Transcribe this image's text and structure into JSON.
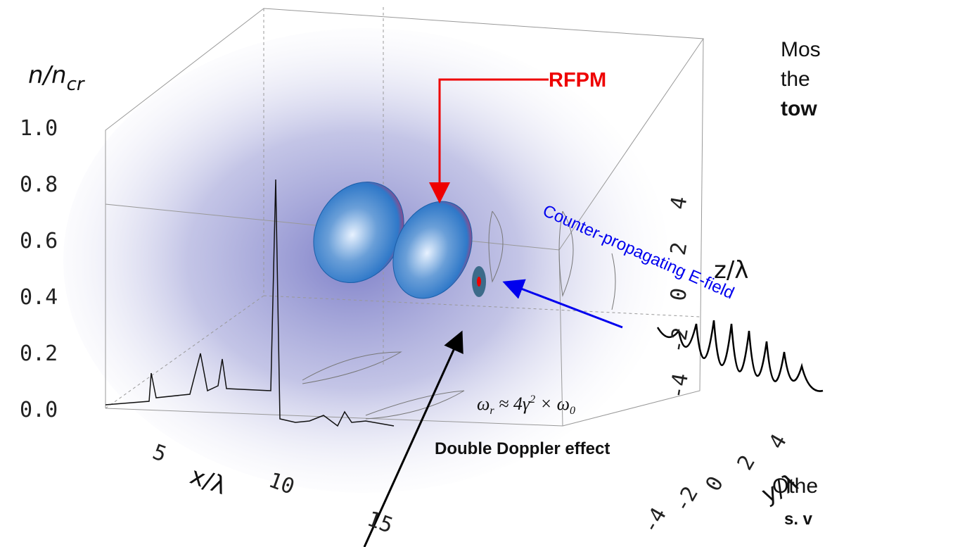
{
  "figure": {
    "n_axis": {
      "label": "n/n",
      "label_sub": "cr",
      "ticks": [
        "1.0",
        "0.8",
        "0.6",
        "0.4",
        "0.2",
        "0.0"
      ]
    },
    "x_axis": {
      "label": "x/λ",
      "ticks": [
        "5",
        "10",
        "15"
      ]
    },
    "y_axis": {
      "label": "y/λ",
      "ticks": [
        "-4",
        "-2",
        "0",
        "2",
        "4"
      ]
    },
    "z_axis": {
      "label": "z/λ",
      "ticks": [
        "4",
        "2",
        "0",
        "-2",
        "-4"
      ]
    },
    "labels": {
      "rfpm": "RFPM",
      "e_field": "Counter-propagating E-field",
      "doppler": "Double Doppler effect"
    },
    "formula": {
      "w": "ω",
      "w_sub": "r",
      "mid": " ≈ 4γ",
      "sup": "2",
      "times": " × ω",
      "sub": "0"
    }
  },
  "side_text": {
    "line1": "Mos",
    "line2": "the",
    "line3": "tow",
    "line4": "Othe",
    "line5": "s. v"
  }
}
